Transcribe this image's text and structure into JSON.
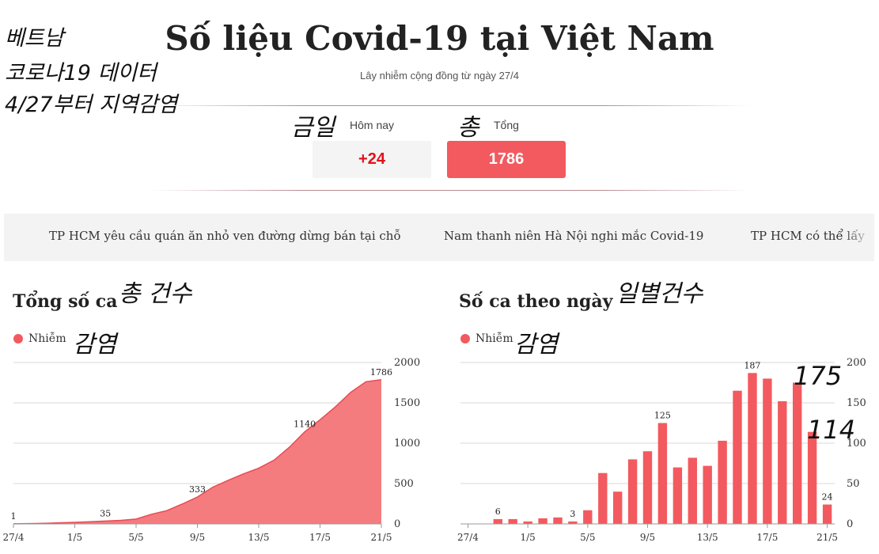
{
  "annotations": {
    "line1": "베트남",
    "line2": "코로나19 데이터",
    "line3": "4/27부터 지역감염",
    "today": "금일",
    "total": "총",
    "left_title": "총 건수",
    "right_title": "일별건수",
    "left_legend": "감염",
    "right_legend": "감염",
    "right_value_1": "175",
    "right_value_2": "114"
  },
  "header": {
    "title": "Số liệu Covid-19 tại Việt Nam",
    "subtitle": "Lây nhiễm cộng đồng từ ngày 27/4"
  },
  "stats": {
    "today_label": "Hôm nay",
    "today_value": "+24",
    "total_label": "Tổng",
    "total_value": "1786"
  },
  "news": [
    "TP HCM yêu cầu quán ăn nhỏ ven đường dừng bán tại chỗ",
    "Nam thanh niên Hà Nội nghi mắc Covid-19",
    "TP HCM có thể lấy"
  ],
  "colors": {
    "accent": "#f25a5f",
    "today_text": "#e3101c",
    "area_fill": "#f47c7f"
  },
  "chart_data": [
    {
      "type": "area",
      "title": "Tổng số ca",
      "legend": "Nhiễm",
      "x": [
        "27/4",
        "28/4",
        "29/4",
        "30/4",
        "1/5",
        "2/5",
        "3/5",
        "4/5",
        "5/5",
        "6/5",
        "7/5",
        "8/5",
        "9/5",
        "10/5",
        "11/5",
        "12/5",
        "13/5",
        "14/5",
        "15/5",
        "16/5",
        "17/5",
        "18/5",
        "19/5",
        "20/5",
        "21/5"
      ],
      "values": [
        1,
        4,
        8,
        14,
        20,
        27,
        35,
        44,
        60,
        120,
        165,
        245,
        333,
        455,
        540,
        620,
        690,
        790,
        950,
        1140,
        1290,
        1450,
        1630,
        1762,
        1786
      ],
      "x_tick_labels": [
        "27/4",
        "1/5",
        "5/5",
        "9/5",
        "13/5",
        "17/5",
        "21/5"
      ],
      "y_ticks": [
        0,
        500,
        1000,
        1500,
        2000
      ],
      "ylim": [
        0,
        2000
      ],
      "data_labels": [
        {
          "x": "27/4",
          "label": "1"
        },
        {
          "x": "3/5",
          "label": "35"
        },
        {
          "x": "9/5",
          "label": "333"
        },
        {
          "x": "16/5",
          "label": "1140"
        },
        {
          "x": "21/5",
          "label": "1786"
        }
      ]
    },
    {
      "type": "bar",
      "title": "Số ca theo ngày",
      "legend": "Nhiễm",
      "categories": [
        "27/4",
        "28/4",
        "29/4",
        "30/4",
        "1/5",
        "2/5",
        "3/5",
        "4/5",
        "5/5",
        "6/5",
        "7/5",
        "8/5",
        "9/5",
        "10/5",
        "11/5",
        "12/5",
        "13/5",
        "14/5",
        "15/5",
        "16/5",
        "17/5",
        "18/5",
        "19/5",
        "20/5",
        "21/5"
      ],
      "values": [
        0,
        0,
        6,
        6,
        3,
        7,
        8,
        3,
        17,
        63,
        40,
        80,
        90,
        125,
        70,
        82,
        72,
        103,
        165,
        187,
        180,
        152,
        175,
        114,
        24
      ],
      "x_tick_labels": [
        "27/4",
        "1/5",
        "5/5",
        "9/5",
        "13/5",
        "17/5",
        "21/5"
      ],
      "y_ticks": [
        0,
        50,
        100,
        150,
        200
      ],
      "ylim": [
        0,
        200
      ],
      "data_labels": [
        {
          "x": "29/4",
          "label": "6"
        },
        {
          "x": "4/5",
          "label": "3"
        },
        {
          "x": "10/5",
          "label": "125"
        },
        {
          "x": "16/5",
          "label": "187"
        },
        {
          "x": "21/5",
          "label": "24"
        }
      ]
    }
  ]
}
